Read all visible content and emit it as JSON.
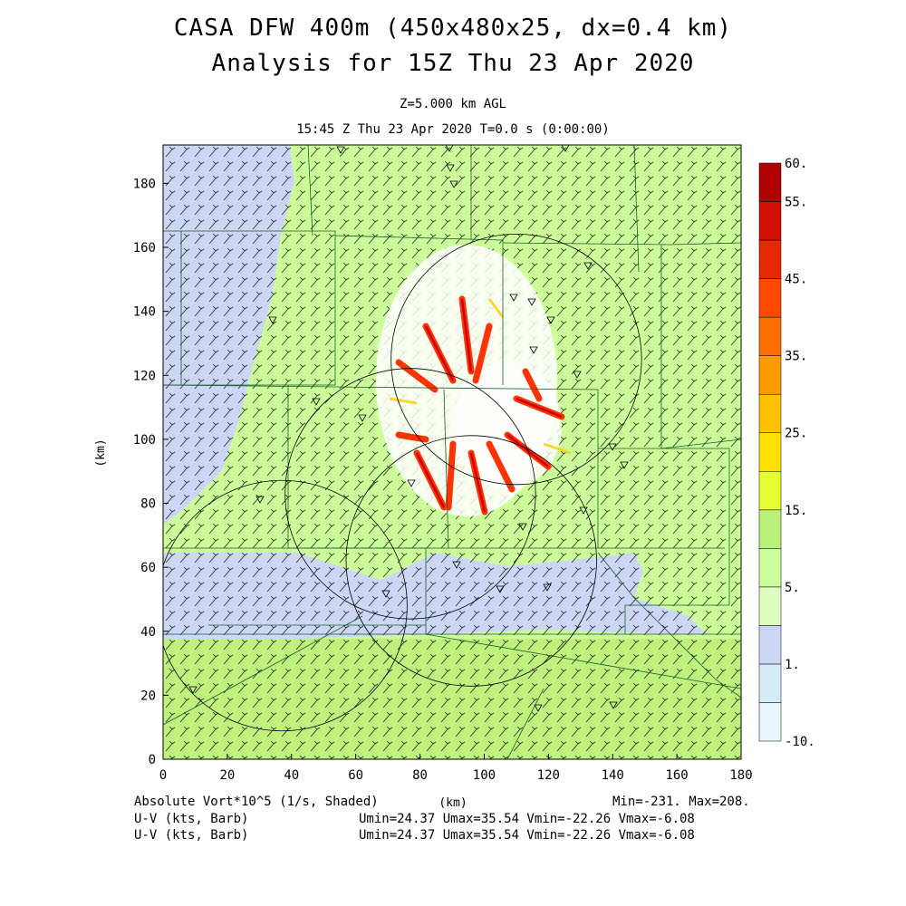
{
  "header": {
    "title_line1": "CASA DFW 400m (450x480x25, dx=0.4 km)",
    "title_line2": "Analysis for 15Z Thu 23 Apr 2020",
    "level": "Z=5.000 km AGL",
    "valid_time": "15:45 Z Thu 23 Apr 2020    T=0.0 s (0:00:00)"
  },
  "footer": {
    "field_label": "Absolute Vort*10^5 (1/s, Shaded)",
    "field_minmax": "Min=-231. Max=208.",
    "wind1_label": "U-V (kts, Barb)",
    "wind1_stats": "Umin=24.37 Umax=35.54 Vmin=-22.26 Vmax=-6.08",
    "wind2_label": "U-V (kts, Barb)",
    "wind2_stats": "Umin=24.37 Umax=35.54 Vmin=-22.26 Vmax=-6.08"
  },
  "colors": {
    "background_field": "#ccff99",
    "low_field": "#ccd6f5",
    "high_field": "#b0e05a",
    "line": "#000000"
  },
  "chart_data": {
    "type": "heatmap",
    "xlabel": "(km)",
    "ylabel": "(km)",
    "xlim": [
      0,
      180
    ],
    "ylim": [
      0,
      192
    ],
    "x_ticks": [
      0,
      20,
      40,
      60,
      80,
      100,
      120,
      140,
      160,
      180
    ],
    "y_ticks": [
      0,
      20,
      40,
      60,
      80,
      100,
      120,
      140,
      160,
      180
    ],
    "radar_ranges": [
      {
        "cx": 110,
        "cy": 125,
        "r": 39
      },
      {
        "cx": 96,
        "cy": 62,
        "r": 39
      },
      {
        "cx": 77,
        "cy": 83,
        "r": 39
      },
      {
        "cx": 37,
        "cy": 48,
        "r": 39
      }
    ],
    "colorbar": {
      "levels": [
        -10,
        -5,
        1,
        3,
        5,
        10,
        15,
        20,
        25,
        30,
        35,
        40,
        45,
        50,
        55,
        60
      ],
      "labels": [
        "-10.",
        "1.",
        "5.",
        "15.",
        "25.",
        "35.",
        "45.",
        "55.",
        "60."
      ],
      "colors": [
        "#e8f6fb",
        "#d6ecf8",
        "#ccd6f5",
        "#dcffc0",
        "#ccff99",
        "#b8f078",
        "#e6ff33",
        "#ffe000",
        "#ffc000",
        "#ff9900",
        "#ff7000",
        "#ff4800",
        "#e82800",
        "#d01000",
        "#b00000"
      ]
    }
  }
}
